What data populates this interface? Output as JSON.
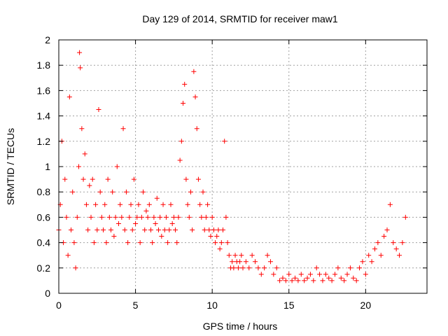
{
  "chart_data": {
    "type": "scatter",
    "title": "Day 129 of 2014, SRMTID for receiver maw1",
    "xlabel": "GPS time / hours",
    "ylabel": "SRMTID / TECUs",
    "xlim": [
      0,
      24
    ],
    "ylim": [
      0,
      2
    ],
    "xticks": [
      0,
      5,
      10,
      15,
      20
    ],
    "yticks": [
      0,
      0.2,
      0.4,
      0.6,
      0.8,
      1,
      1.2,
      1.4,
      1.6,
      1.8,
      2
    ],
    "xtick_labels": [
      "0",
      "5",
      "10",
      "15",
      "20"
    ],
    "ytick_labels": [
      "0",
      "0.2",
      "0.4",
      "0.6",
      "0.8",
      "1",
      "1.2",
      "1.4",
      "1.6",
      "1.8",
      "2"
    ],
    "grid": true,
    "marker": "+",
    "color": "#ff0000",
    "series": [
      {
        "name": "maw1",
        "x": [
          0.0,
          0.1,
          0.2,
          0.3,
          0.4,
          0.5,
          0.6,
          0.7,
          0.8,
          0.9,
          1.0,
          1.1,
          1.2,
          1.3,
          1.35,
          1.4,
          1.5,
          1.6,
          1.7,
          1.8,
          1.9,
          2.0,
          2.1,
          2.2,
          2.3,
          2.4,
          2.5,
          2.6,
          2.7,
          2.8,
          2.9,
          3.0,
          3.1,
          3.2,
          3.3,
          3.4,
          3.5,
          3.6,
          3.7,
          3.8,
          3.9,
          4.0,
          4.1,
          4.2,
          4.3,
          4.4,
          4.5,
          4.6,
          4.7,
          4.8,
          4.9,
          5.0,
          5.1,
          5.2,
          5.3,
          5.4,
          5.5,
          5.6,
          5.7,
          5.8,
          5.9,
          6.0,
          6.1,
          6.2,
          6.3,
          6.4,
          6.5,
          6.6,
          6.7,
          6.8,
          6.9,
          7.0,
          7.1,
          7.2,
          7.3,
          7.4,
          7.5,
          7.6,
          7.7,
          7.8,
          7.9,
          8.0,
          8.1,
          8.2,
          8.3,
          8.4,
          8.5,
          8.6,
          8.7,
          8.8,
          8.9,
          9.0,
          9.1,
          9.2,
          9.3,
          9.4,
          9.5,
          9.6,
          9.7,
          9.8,
          9.9,
          10.0,
          10.1,
          10.2,
          10.3,
          10.4,
          10.5,
          10.6,
          10.7,
          10.8,
          10.9,
          11.0,
          11.1,
          11.2,
          11.3,
          11.4,
          11.5,
          11.6,
          11.7,
          11.8,
          11.9,
          12.0,
          12.2,
          12.4,
          12.6,
          12.8,
          13.0,
          13.2,
          13.4,
          13.6,
          13.8,
          14.0,
          14.2,
          14.4,
          14.6,
          14.8,
          15.0,
          15.2,
          15.4,
          15.6,
          15.8,
          16.0,
          16.2,
          16.4,
          16.6,
          16.8,
          17.0,
          17.2,
          17.4,
          17.6,
          17.8,
          18.0,
          18.2,
          18.4,
          18.6,
          18.8,
          19.0,
          19.2,
          19.4,
          19.6,
          19.8,
          20.0,
          20.2,
          20.4,
          20.6,
          20.8,
          21.0,
          21.2,
          21.4,
          21.6,
          21.8,
          22.0,
          22.2,
          22.4,
          22.6
        ],
        "y": [
          0.5,
          0.7,
          1.2,
          0.4,
          0.9,
          0.6,
          0.3,
          1.55,
          0.5,
          0.8,
          0.4,
          0.2,
          0.6,
          1.0,
          1.9,
          1.78,
          1.3,
          0.9,
          1.1,
          0.7,
          0.5,
          0.85,
          0.6,
          0.9,
          0.4,
          0.7,
          0.5,
          1.45,
          0.8,
          0.6,
          0.5,
          0.7,
          0.4,
          0.9,
          0.6,
          0.5,
          0.8,
          0.45,
          0.6,
          1.0,
          0.55,
          0.7,
          0.6,
          1.3,
          0.5,
          0.8,
          0.4,
          0.6,
          0.7,
          0.5,
          0.9,
          0.55,
          0.6,
          0.7,
          0.4,
          0.6,
          0.8,
          0.5,
          0.65,
          0.6,
          0.7,
          0.5,
          0.4,
          0.6,
          0.55,
          0.75,
          0.5,
          0.6,
          0.45,
          0.7,
          0.5,
          0.6,
          0.4,
          0.5,
          0.7,
          0.55,
          0.6,
          0.5,
          0.4,
          0.6,
          1.05,
          1.2,
          1.5,
          1.65,
          0.9,
          0.7,
          0.6,
          0.8,
          0.5,
          1.75,
          1.55,
          1.3,
          0.9,
          0.7,
          0.6,
          0.8,
          0.5,
          0.6,
          0.7,
          0.5,
          0.45,
          0.6,
          0.5,
          0.4,
          0.45,
          0.5,
          0.35,
          0.4,
          0.5,
          1.2,
          0.6,
          0.4,
          0.3,
          0.2,
          0.25,
          0.2,
          0.3,
          0.25,
          0.2,
          0.25,
          0.3,
          0.2,
          0.25,
          0.2,
          0.3,
          0.25,
          0.2,
          0.15,
          0.2,
          0.3,
          0.25,
          0.15,
          0.2,
          0.1,
          0.12,
          0.1,
          0.15,
          0.1,
          0.12,
          0.1,
          0.15,
          0.1,
          0.12,
          0.15,
          0.1,
          0.2,
          0.15,
          0.1,
          0.15,
          0.12,
          0.1,
          0.15,
          0.2,
          0.12,
          0.1,
          0.15,
          0.2,
          0.12,
          0.1,
          0.2,
          0.25,
          0.15,
          0.3,
          0.25,
          0.35,
          0.4,
          0.3,
          0.45,
          0.5,
          0.7,
          0.4,
          0.35,
          0.3,
          0.4,
          0.6
        ]
      }
    ]
  }
}
